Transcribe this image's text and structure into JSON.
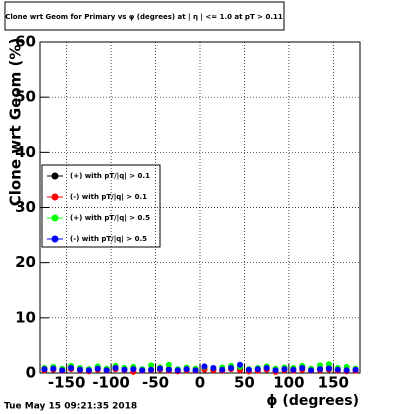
{
  "chart_data": {
    "type": "scatter",
    "title": "Clone wrt Geom for Primary vs φ (degrees) at | η | <= 1.0 at pT > 0.11",
    "xlabel": "ϕ (degrees)",
    "ylabel": "Clone wrt Geom (%)",
    "timestamp": "Tue May 15 09:21:35 2018",
    "xlim": [
      -180,
      180
    ],
    "ylim": [
      0,
      60
    ],
    "xticks": [
      -150,
      -100,
      -50,
      0,
      50,
      100,
      150
    ],
    "yticks": [
      0,
      10,
      20,
      30,
      40,
      50,
      60
    ],
    "grid": true,
    "legend": "left",
    "x": [
      -175,
      -165,
      -155,
      -145,
      -135,
      -125,
      -115,
      -105,
      -95,
      -85,
      -75,
      -65,
      -55,
      -45,
      -35,
      -25,
      -15,
      -5,
      5,
      15,
      25,
      35,
      45,
      55,
      65,
      75,
      85,
      95,
      105,
      115,
      125,
      135,
      145,
      155,
      165,
      175
    ],
    "series": [
      {
        "name": "(+) with pT/|q| > 0.1",
        "color": "#000000",
        "values": [
          0.8,
          0.9,
          0.6,
          1.2,
          0.7,
          0.5,
          0.9,
          0.6,
          1.1,
          0.7,
          0.8,
          0.5,
          0.6,
          0.9,
          0.7,
          0.5,
          0.8,
          0.6,
          0.9,
          0.7,
          0.6,
          1.0,
          0.8,
          0.5,
          0.7,
          0.9,
          0.6,
          0.8,
          0.7,
          1.0,
          0.6,
          0.8,
          0.9,
          0.7,
          0.5,
          0.6
        ]
      },
      {
        "name": "(-) with pT/|q| > 0.1",
        "color": "#ff0000",
        "values": [
          0.5,
          0.6,
          0.4,
          0.7,
          0.5,
          0.3,
          0.6,
          0.4,
          0.7,
          0.5,
          0.2,
          0.4,
          0.5,
          0.6,
          0.4,
          0.3,
          0.5,
          0.4,
          0.6,
          0.5,
          0.4,
          0.7,
          0.5,
          0.3,
          0.4,
          0.6,
          0.2,
          0.5,
          0.4,
          0.6,
          0.4,
          0.5,
          0.6,
          0.4,
          0.3,
          0.4
        ]
      },
      {
        "name": "(+) with pT/|q| > 0.5",
        "color": "#00ff00",
        "values": [
          0.9,
          1.1,
          0.8,
          1.3,
          0.9,
          0.7,
          1.2,
          0.8,
          1.3,
          0.9,
          1.1,
          0.7,
          1.4,
          1.0,
          1.5,
          0.7,
          1.0,
          0.8,
          1.1,
          0.9,
          1.0,
          1.3,
          1.1,
          0.7,
          0.9,
          1.2,
          0.8,
          1.0,
          0.9,
          1.3,
          0.8,
          1.4,
          1.6,
          0.9,
          1.1,
          0.8
        ]
      },
      {
        "name": "(-) with pT/|q| > 0.5",
        "color": "#0000ff",
        "values": [
          0.7,
          0.8,
          0.5,
          0.9,
          0.6,
          0.5,
          0.8,
          0.5,
          0.9,
          0.6,
          0.7,
          0.5,
          0.6,
          0.8,
          0.6,
          0.5,
          0.7,
          0.5,
          1.2,
          0.9,
          0.6,
          0.9,
          1.5,
          0.6,
          0.7,
          0.9,
          0.5,
          0.7,
          0.6,
          0.9,
          0.5,
          0.7,
          0.8,
          0.6,
          0.5,
          0.6
        ]
      }
    ]
  }
}
